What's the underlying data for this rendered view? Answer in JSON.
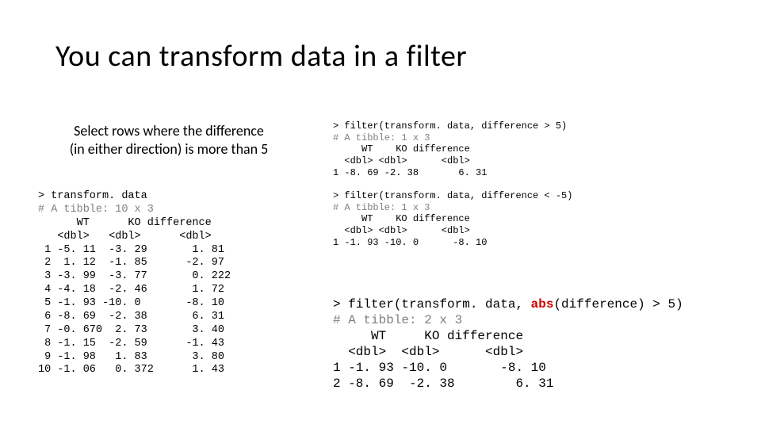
{
  "title": "You can transform data in a filter",
  "subtitle_line1": "Select rows where the difference",
  "subtitle_line2": "(in either direction) is more than 5",
  "colors": {
    "background": "#ffffff",
    "text": "#000000",
    "comment": "#808080",
    "highlight": "#d00000"
  },
  "fonts": {
    "title_family": "Calibri",
    "title_size_pt": 30,
    "title_weight": 300,
    "body_family": "Calibri",
    "body_size_pt": 16,
    "code_family": "Courier New",
    "code_size_small_pt": 10,
    "code_size_medium_pt": 12,
    "code_size_large_pt": 14
  },
  "code1": {
    "prompt": "> transform. data",
    "comment": "# A tibble: 10 x 3",
    "header1": "      WT      KO difference",
    "header2": "   <dbl>   <dbl>      <dbl>",
    "rows": [
      " 1 -5. 11  -3. 29       1. 81",
      " 2  1. 12  -1. 85      -2. 97",
      " 3 -3. 99  -3. 77       0. 222",
      " 4 -4. 18  -2. 46       1. 72",
      " 5 -1. 93 -10. 0       -8. 10",
      " 6 -8. 69  -2. 38       6. 31",
      " 7 -0. 670  2. 73       3. 40",
      " 8 -1. 15  -2. 59      -1. 43",
      " 9 -1. 98   1. 83       3. 80",
      "10 -1. 06   0. 372      1. 43"
    ]
  },
  "code2": {
    "prompt": "> filter(transform. data, difference > 5)",
    "comment": "# A tibble: 1 x 3",
    "header1": "     WT    KO difference",
    "header2": "  <dbl> <dbl>      <dbl>",
    "row1": "1 -8. 69 -2. 38       6. 31"
  },
  "code3": {
    "prompt": "> filter(transform. data, difference < -5)",
    "comment": "# A tibble: 1 x 3",
    "header1": "     WT    KO difference",
    "header2": "  <dbl> <dbl>      <dbl>",
    "row1": "1 -1. 93 -10. 0      -8. 10"
  },
  "code4": {
    "prompt_pre": "> filter(transform. data, ",
    "abs": "abs",
    "prompt_post": "(difference) > 5)",
    "comment": "# A tibble: 2 x 3",
    "header1": "     WT     KO difference",
    "header2": "  <dbl>  <dbl>      <dbl>",
    "row1": "1 -1. 93 -10. 0       -8. 10",
    "row2": "2 -8. 69  -2. 38        6. 31"
  }
}
